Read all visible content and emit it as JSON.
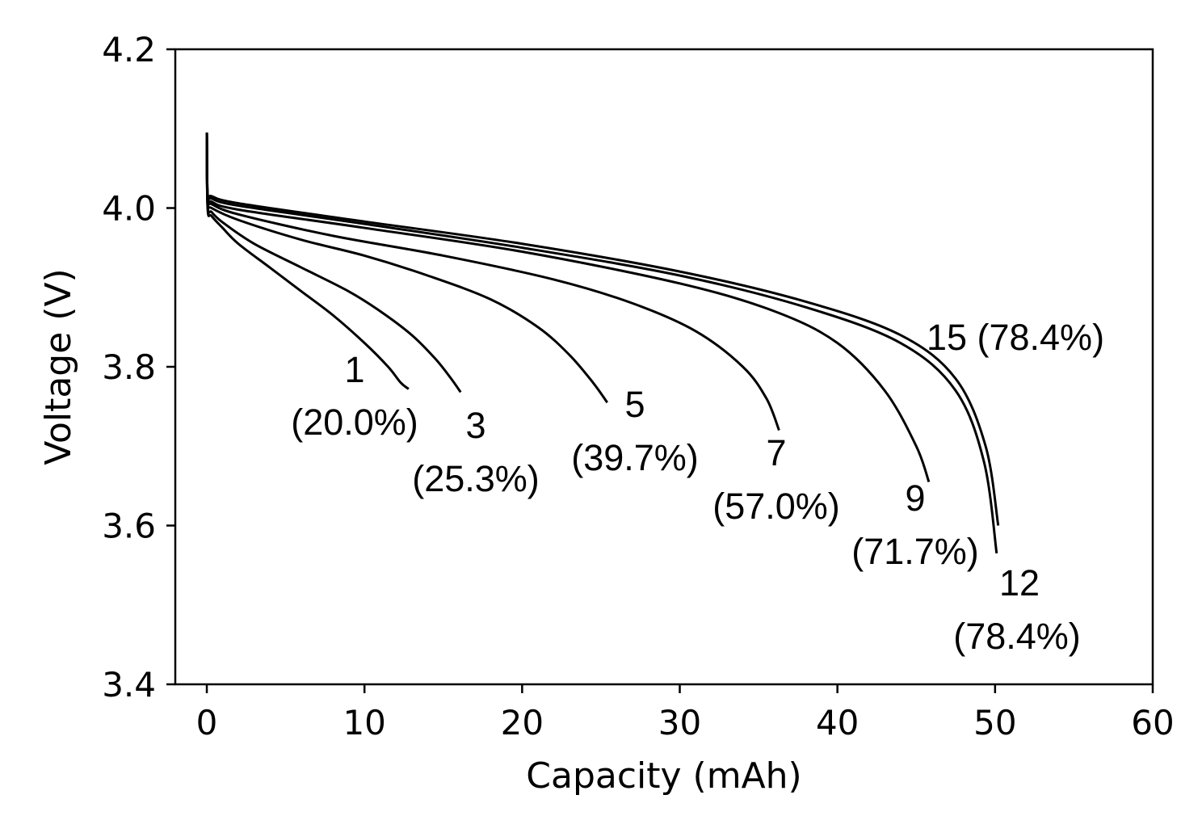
{
  "chart_data": {
    "type": "line",
    "xlabel": "Capacity (mAh)",
    "ylabel": "Voltage (V)",
    "xlim": [
      -2,
      60
    ],
    "ylim": [
      3.4,
      4.2
    ],
    "xticks": [
      0,
      10,
      20,
      30,
      40,
      50,
      60
    ],
    "xtick_labels": [
      "0",
      "10",
      "20",
      "30",
      "40",
      "50",
      "60"
    ],
    "yticks": [
      3.4,
      3.6,
      3.8,
      4.0,
      4.2
    ],
    "ytick_labels": [
      "3.4",
      "3.6",
      "3.8",
      "4.0",
      "4.2"
    ],
    "grid": false,
    "line_color": "#000000",
    "series": [
      {
        "x": [
          0,
          0.05,
          0.3,
          1,
          2,
          4,
          6,
          8,
          10,
          11.5,
          12.3,
          12.8
        ],
        "y": [
          4.095,
          4.0,
          3.99,
          3.975,
          3.955,
          3.925,
          3.895,
          3.865,
          3.83,
          3.8,
          3.78,
          3.772
        ],
        "annotation": [
          "1",
          "(20.0%)"
        ]
      },
      {
        "x": [
          0,
          0.05,
          0.3,
          1,
          3,
          6,
          9,
          11,
          13,
          14.5,
          15.5,
          16.1
        ],
        "y": [
          4.095,
          4.003,
          3.995,
          3.982,
          3.955,
          3.925,
          3.895,
          3.87,
          3.84,
          3.81,
          3.785,
          3.768
        ],
        "annotation": [
          "3",
          "(25.3%)"
        ]
      },
      {
        "x": [
          0,
          0.05,
          0.3,
          2,
          6,
          10,
          14,
          18,
          21,
          23,
          24.5,
          25.4
        ],
        "y": [
          4.095,
          4.007,
          4.0,
          3.985,
          3.96,
          3.94,
          3.915,
          3.885,
          3.85,
          3.815,
          3.78,
          3.755
        ],
        "annotation": [
          "5",
          "(39.7%)"
        ]
      },
      {
        "x": [
          0,
          0.05,
          0.3,
          2,
          8,
          15,
          22,
          27,
          31,
          34,
          35.5,
          36.3
        ],
        "y": [
          4.095,
          4.01,
          4.005,
          3.992,
          3.965,
          3.94,
          3.91,
          3.88,
          3.845,
          3.8,
          3.76,
          3.72
        ],
        "annotation": [
          "7",
          "(57.0%)"
        ]
      },
      {
        "x": [
          0,
          0.05,
          0.3,
          2,
          10,
          20,
          30,
          36,
          40,
          43,
          45,
          45.8
        ],
        "y": [
          4.095,
          4.013,
          4.008,
          3.998,
          3.975,
          3.945,
          3.905,
          3.87,
          3.83,
          3.77,
          3.7,
          3.655
        ],
        "annotation": [
          "9",
          "(71.7%)"
        ]
      },
      {
        "x": [
          0,
          0.05,
          0.3,
          2,
          10,
          20,
          30,
          38,
          44,
          47.5,
          49.3,
          50.1
        ],
        "y": [
          4.095,
          4.016,
          4.012,
          4.003,
          3.98,
          3.95,
          3.915,
          3.875,
          3.83,
          3.77,
          3.68,
          3.565
        ],
        "annotation": [
          "12",
          "(78.4%)"
        ]
      },
      {
        "x": [
          0,
          0.05,
          0.3,
          2,
          10,
          20,
          30,
          38,
          44,
          47.5,
          49.4,
          50.2
        ],
        "y": [
          4.095,
          4.018,
          4.015,
          4.006,
          3.983,
          3.955,
          3.92,
          3.882,
          3.84,
          3.785,
          3.7,
          3.6
        ],
        "annotation": [
          "15 (78.4%)"
        ]
      }
    ]
  }
}
